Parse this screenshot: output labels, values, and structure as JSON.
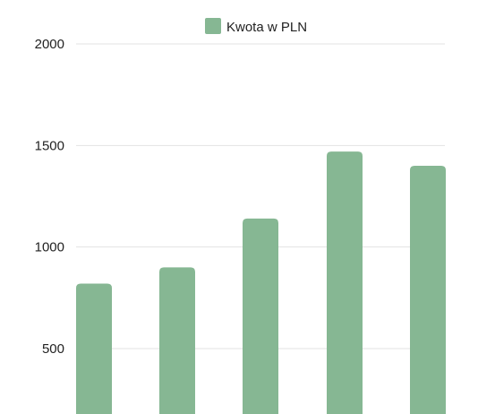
{
  "chart_data": {
    "type": "bar",
    "title": "",
    "xlabel": "",
    "ylabel": "",
    "categories": [
      "",
      "",
      "",
      "",
      ""
    ],
    "series": [
      {
        "name": "Kwota w PLN",
        "color": "#86b793",
        "values": [
          820,
          900,
          1140,
          1470,
          1400
        ]
      }
    ],
    "ylim": [
      300,
      2000
    ],
    "y_ticks": [
      {
        "value": 500,
        "label": "500"
      },
      {
        "value": 1000,
        "label": "1000"
      },
      {
        "value": 1500,
        "label": "1500"
      },
      {
        "value": 2000,
        "label": "2000"
      }
    ],
    "grid": true,
    "legend_position": "top-center"
  }
}
